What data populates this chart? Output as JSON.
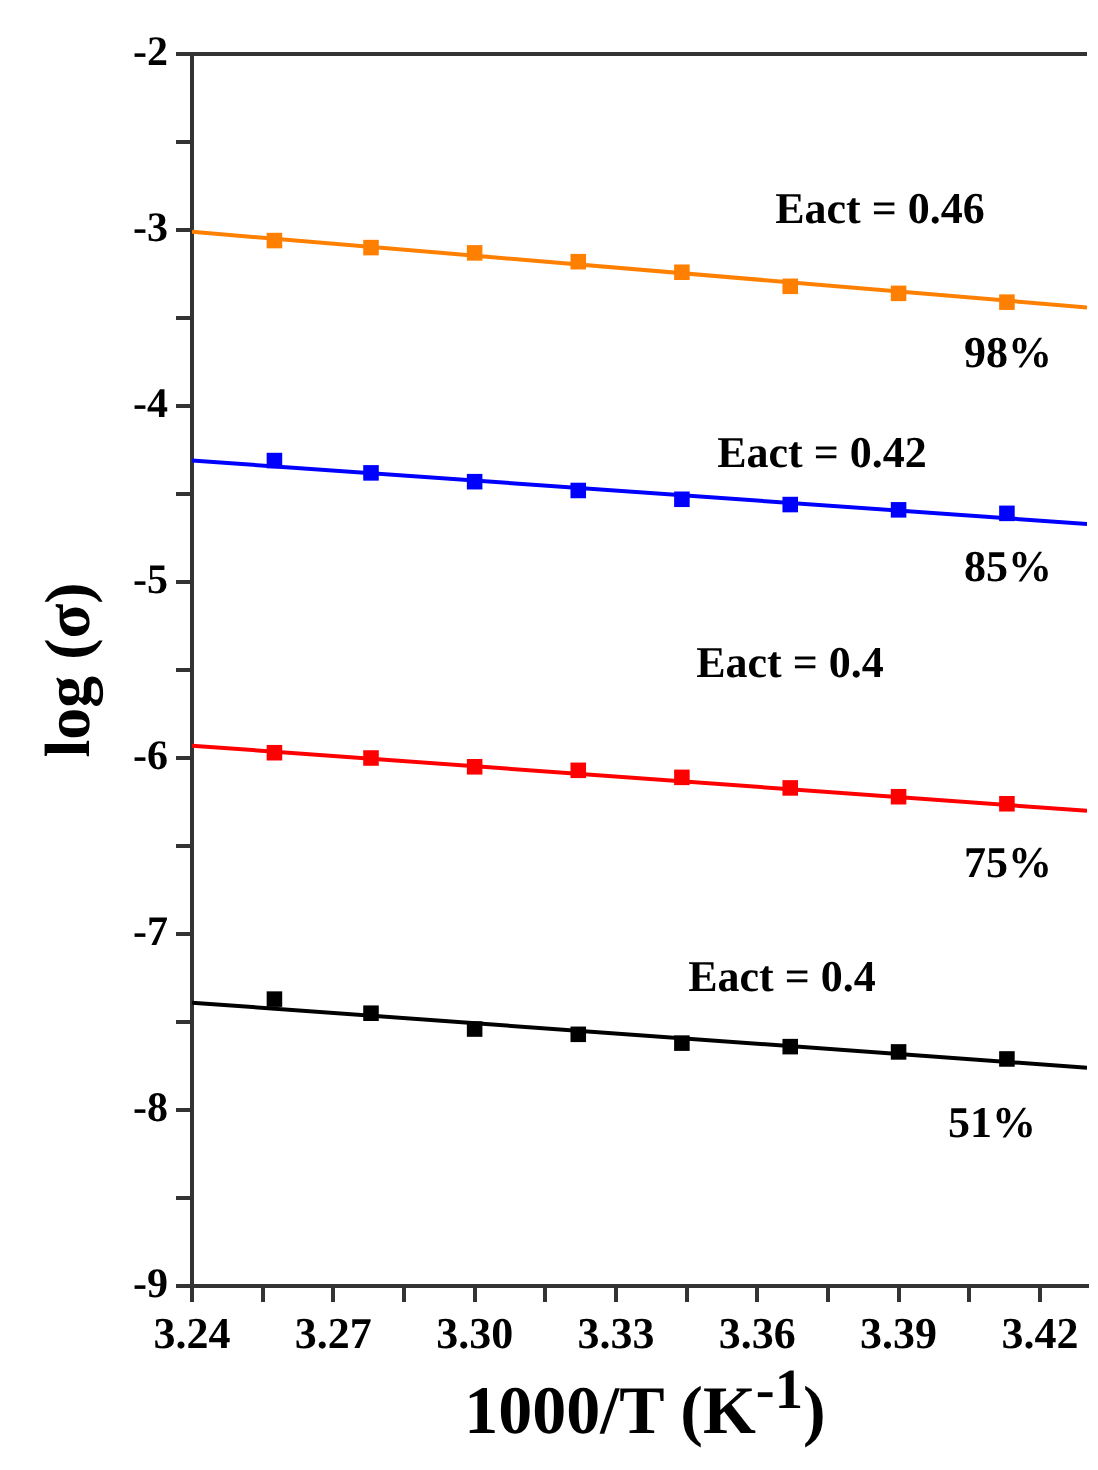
{
  "chart_data": {
    "type": "scatter",
    "xlabel": "1000/T (K$^{-1}$)",
    "ylabel": "log (σ)",
    "xlim": [
      3.24,
      3.43
    ],
    "ylim": [
      -9,
      -2
    ],
    "xticks": [
      3.24,
      {
        "value": 3.255,
        "label": null
      },
      3.27,
      {
        "value": 3.285,
        "label": null
      },
      {
        "value": 3.3,
        "label": "3.30"
      },
      {
        "value": 3.315,
        "label": null
      },
      3.33,
      {
        "value": 3.345,
        "label": null
      },
      3.36,
      {
        "value": 3.375,
        "label": null
      },
      3.39,
      {
        "value": 3.405,
        "label": null
      },
      3.42
    ],
    "yticks": [
      -9,
      {
        "value": -8.5,
        "label": null
      },
      -8,
      {
        "value": -7.5,
        "label": null
      },
      -7,
      {
        "value": -6.5,
        "label": null
      },
      -6,
      {
        "value": -5.5,
        "label": null
      },
      -5,
      {
        "value": -4.5,
        "label": null
      },
      -4,
      {
        "value": -3.5,
        "label": null
      },
      -3,
      {
        "value": -2.5,
        "label": null
      },
      -2
    ],
    "grid": false,
    "legend": false,
    "marker": "square",
    "series": [
      {
        "type": "line",
        "marker": "none",
        "color": "#ff8000",
        "x": [
          3.24,
          3.43
        ],
        "values": [
          -3.01,
          -3.44
        ]
      },
      {
        "type": "line",
        "marker": "none",
        "color": "#0000ff",
        "x": [
          3.24,
          3.43
        ],
        "values": [
          -4.31,
          -4.67
        ]
      },
      {
        "type": "line",
        "marker": "none",
        "color": "#ff0000",
        "x": [
          3.24,
          3.43
        ],
        "values": [
          -5.93,
          -6.3
        ]
      },
      {
        "type": "line",
        "marker": "none",
        "color": "#000000",
        "x": [
          3.24,
          3.43
        ],
        "values": [
          -7.39,
          -7.76
        ]
      },
      {
        "color": "#ff8000",
        "x": [
          3.2575,
          3.278,
          3.3,
          3.322,
          3.344,
          3.367,
          3.39,
          3.413
        ],
        "values": [
          -3.06,
          -3.1,
          -3.13,
          -3.18,
          -3.24,
          -3.32,
          -3.36,
          -3.41
        ]
      },
      {
        "color": "#0000ff",
        "x": [
          3.2575,
          3.278,
          3.3,
          3.322,
          3.344,
          3.367,
          3.39,
          3.413
        ],
        "values": [
          -4.31,
          -4.38,
          -4.43,
          -4.48,
          -4.53,
          -4.56,
          -4.59,
          -4.61
        ]
      },
      {
        "color": "#ff0000",
        "x": [
          3.2575,
          3.278,
          3.3,
          3.322,
          3.344,
          3.367,
          3.39,
          3.413
        ],
        "values": [
          -5.97,
          -6.0,
          -6.05,
          -6.07,
          -6.11,
          -6.17,
          -6.22,
          -6.26
        ]
      },
      {
        "color": "#000000",
        "x": [
          3.2575,
          3.278,
          3.3,
          3.322,
          3.344,
          3.367,
          3.39,
          3.413
        ],
        "values": [
          -7.37,
          -7.45,
          -7.54,
          -7.57,
          -7.62,
          -7.64,
          -7.67,
          -7.71
        ]
      }
    ],
    "annotations": [
      "Eact = 0.46",
      "98%",
      "Eact = 0.42",
      "85%",
      "Eact = 0.4",
      "75%",
      "Eact = 0.4",
      "51%"
    ]
  }
}
